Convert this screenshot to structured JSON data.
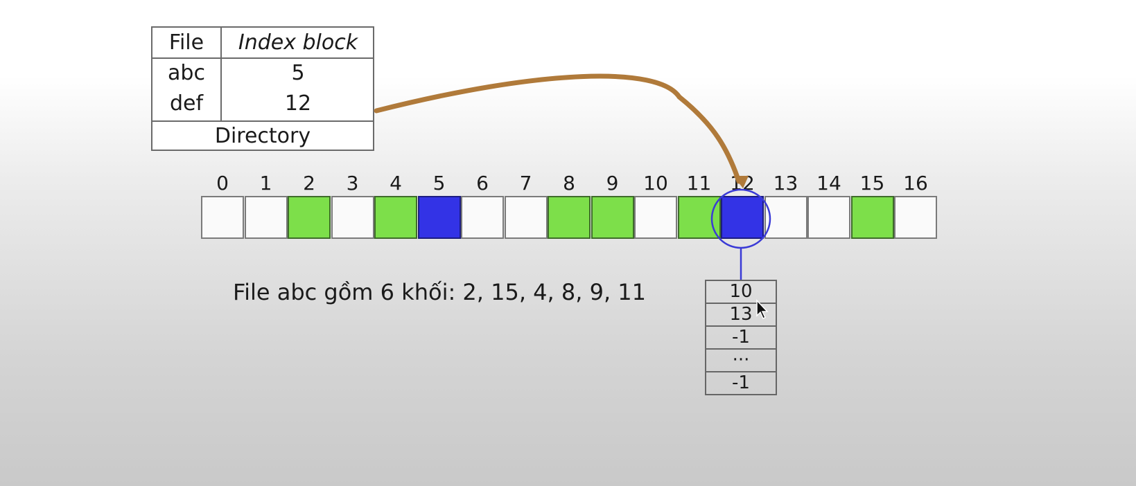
{
  "directory": {
    "header_file": "File",
    "header_index": "Index block",
    "rows": [
      {
        "file": "abc",
        "index": "5"
      },
      {
        "file": "def",
        "index": "12"
      }
    ],
    "caption": "Directory"
  },
  "disk": {
    "block_numbers": [
      "0",
      "1",
      "2",
      "3",
      "4",
      "5",
      "6",
      "7",
      "8",
      "9",
      "10",
      "11",
      "12",
      "13",
      "14",
      "15",
      "16"
    ],
    "used_blocks": [
      2,
      4,
      8,
      9,
      11,
      15
    ],
    "index_blocks": [
      5,
      12
    ],
    "highlighted_block": 12
  },
  "caption_abc": "File abc gồm 6 khối: 2, 15, 4, 8, 9, 11",
  "index_block_12": [
    "10",
    "13",
    "-1",
    "···",
    "-1"
  ],
  "colors": {
    "used": "#7ddf4a",
    "index": "#3333e6",
    "arrow": "#b07a3a",
    "pointer": "#3a3ad6"
  },
  "icons": {
    "cursor": "mouse-pointer-icon"
  }
}
